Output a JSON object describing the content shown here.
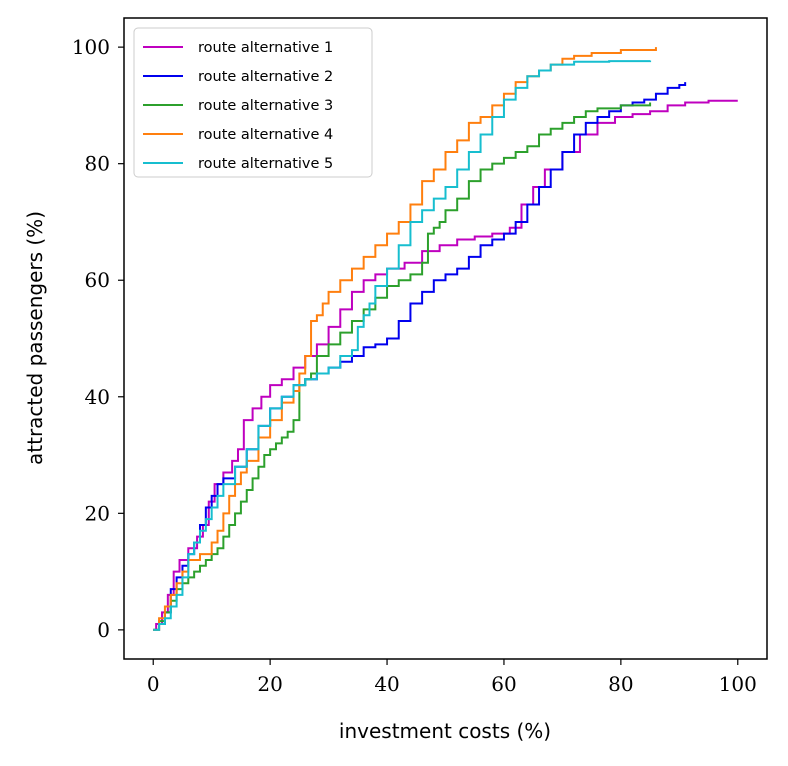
{
  "chart_data": {
    "type": "line",
    "step": true,
    "title": "",
    "xlabel": "investment costs (%)",
    "ylabel": "attracted passengers (%)",
    "xlim": [
      -5,
      105
    ],
    "ylim": [
      -5,
      105
    ],
    "xticks": [
      0,
      20,
      40,
      60,
      80,
      100
    ],
    "yticks": [
      0,
      20,
      40,
      60,
      80,
      100
    ],
    "legend_position": "top-left",
    "series": [
      {
        "name": "route alternative 1",
        "color": "#bf00bf",
        "points": [
          [
            0,
            0
          ],
          [
            0.5,
            1
          ],
          [
            1.5,
            3
          ],
          [
            2.5,
            6
          ],
          [
            3.5,
            10
          ],
          [
            4.5,
            12
          ],
          [
            6,
            14
          ],
          [
            7.5,
            16
          ],
          [
            8.5,
            18
          ],
          [
            9.5,
            22
          ],
          [
            10.5,
            25
          ],
          [
            12,
            27
          ],
          [
            13.5,
            29
          ],
          [
            14.5,
            31
          ],
          [
            15.5,
            36
          ],
          [
            17,
            38
          ],
          [
            18.5,
            40
          ],
          [
            20,
            42
          ],
          [
            22,
            43
          ],
          [
            24,
            45
          ],
          [
            26,
            47
          ],
          [
            28,
            49
          ],
          [
            30,
            52
          ],
          [
            32,
            55
          ],
          [
            34,
            58
          ],
          [
            36,
            60
          ],
          [
            38,
            61
          ],
          [
            40,
            62
          ],
          [
            43,
            63
          ],
          [
            46,
            65
          ],
          [
            49,
            66
          ],
          [
            52,
            67
          ],
          [
            55,
            67.5
          ],
          [
            58,
            68
          ],
          [
            61,
            69
          ],
          [
            63,
            73
          ],
          [
            65,
            76
          ],
          [
            67,
            79
          ],
          [
            70,
            82
          ],
          [
            73,
            85
          ],
          [
            76,
            87
          ],
          [
            79,
            88
          ],
          [
            82,
            88.5
          ],
          [
            85,
            89
          ],
          [
            88,
            90
          ],
          [
            91,
            90.5
          ],
          [
            95,
            90.8
          ],
          [
            100,
            90.8
          ]
        ]
      },
      {
        "name": "route alternative 2",
        "color": "#0000ee",
        "points": [
          [
            0,
            0
          ],
          [
            1,
            1
          ],
          [
            2,
            3
          ],
          [
            3,
            7
          ],
          [
            4,
            9
          ],
          [
            5,
            11
          ],
          [
            6,
            13
          ],
          [
            7,
            15
          ],
          [
            8,
            18
          ],
          [
            9,
            21
          ],
          [
            10,
            23
          ],
          [
            11,
            25
          ],
          [
            12,
            26
          ],
          [
            14,
            28
          ],
          [
            16,
            31
          ],
          [
            18,
            35
          ],
          [
            20,
            38
          ],
          [
            22,
            40
          ],
          [
            24,
            42
          ],
          [
            26,
            43
          ],
          [
            28,
            44
          ],
          [
            30,
            45
          ],
          [
            32,
            46
          ],
          [
            34,
            47
          ],
          [
            36,
            48.5
          ],
          [
            38,
            49
          ],
          [
            40,
            50
          ],
          [
            42,
            53
          ],
          [
            44,
            56
          ],
          [
            46,
            58
          ],
          [
            48,
            60
          ],
          [
            50,
            61
          ],
          [
            52,
            62
          ],
          [
            54,
            64
          ],
          [
            56,
            66
          ],
          [
            58,
            67
          ],
          [
            60,
            68
          ],
          [
            62,
            70
          ],
          [
            64,
            73
          ],
          [
            66,
            76
          ],
          [
            68,
            79
          ],
          [
            70,
            82
          ],
          [
            72,
            85
          ],
          [
            74,
            87
          ],
          [
            76,
            88
          ],
          [
            78,
            89
          ],
          [
            80,
            90
          ],
          [
            82,
            90.5
          ],
          [
            84,
            91
          ],
          [
            86,
            92
          ],
          [
            88,
            93
          ],
          [
            90,
            93.5
          ],
          [
            91,
            94
          ]
        ]
      },
      {
        "name": "route alternative 3",
        "color": "#2ca02c",
        "points": [
          [
            0,
            0
          ],
          [
            1,
            1.5
          ],
          [
            2,
            3
          ],
          [
            3,
            5
          ],
          [
            4,
            7
          ],
          [
            5,
            8
          ],
          [
            6,
            9
          ],
          [
            7,
            10
          ],
          [
            8,
            11
          ],
          [
            9,
            12
          ],
          [
            10,
            13
          ],
          [
            11,
            14
          ],
          [
            12,
            16
          ],
          [
            13,
            18
          ],
          [
            14,
            20
          ],
          [
            15,
            22
          ],
          [
            16,
            24
          ],
          [
            17,
            26
          ],
          [
            18,
            28
          ],
          [
            19,
            30
          ],
          [
            20,
            31
          ],
          [
            21,
            32
          ],
          [
            22,
            33
          ],
          [
            23,
            34
          ],
          [
            24,
            36
          ],
          [
            25,
            42
          ],
          [
            26,
            43
          ],
          [
            27,
            44
          ],
          [
            28,
            47
          ],
          [
            30,
            49
          ],
          [
            32,
            51
          ],
          [
            34,
            53
          ],
          [
            36,
            55
          ],
          [
            38,
            57
          ],
          [
            40,
            59
          ],
          [
            42,
            60
          ],
          [
            44,
            61
          ],
          [
            46,
            63
          ],
          [
            47,
            68
          ],
          [
            48,
            69
          ],
          [
            49,
            70
          ],
          [
            50,
            72
          ],
          [
            52,
            74
          ],
          [
            54,
            77
          ],
          [
            56,
            79
          ],
          [
            58,
            80
          ],
          [
            60,
            81
          ],
          [
            62,
            82
          ],
          [
            64,
            83
          ],
          [
            66,
            85
          ],
          [
            68,
            86
          ],
          [
            70,
            87
          ],
          [
            72,
            88
          ],
          [
            74,
            89
          ],
          [
            76,
            89.5
          ],
          [
            80,
            90
          ],
          [
            85,
            90.5
          ]
        ]
      },
      {
        "name": "route alternative 4",
        "color": "#ff7f0e",
        "points": [
          [
            0,
            0
          ],
          [
            1,
            2
          ],
          [
            2,
            4
          ],
          [
            3,
            6
          ],
          [
            4,
            8
          ],
          [
            5,
            10
          ],
          [
            6,
            12
          ],
          [
            8,
            13
          ],
          [
            10,
            15
          ],
          [
            11,
            17
          ],
          [
            12,
            20
          ],
          [
            13,
            23
          ],
          [
            14,
            25
          ],
          [
            15,
            27
          ],
          [
            16,
            29
          ],
          [
            18,
            33
          ],
          [
            20,
            36
          ],
          [
            22,
            39
          ],
          [
            24,
            41
          ],
          [
            25,
            44
          ],
          [
            26,
            47
          ],
          [
            27,
            53
          ],
          [
            28,
            54
          ],
          [
            29,
            56
          ],
          [
            30,
            58
          ],
          [
            32,
            60
          ],
          [
            34,
            62
          ],
          [
            36,
            64
          ],
          [
            38,
            66
          ],
          [
            40,
            68
          ],
          [
            42,
            70
          ],
          [
            44,
            73
          ],
          [
            46,
            77
          ],
          [
            48,
            79
          ],
          [
            50,
            82
          ],
          [
            52,
            84
          ],
          [
            54,
            87
          ],
          [
            56,
            88
          ],
          [
            58,
            90
          ],
          [
            60,
            92
          ],
          [
            62,
            94
          ],
          [
            64,
            95
          ],
          [
            66,
            96
          ],
          [
            68,
            97
          ],
          [
            70,
            98
          ],
          [
            72,
            98.5
          ],
          [
            75,
            99
          ],
          [
            80,
            99.5
          ],
          [
            86,
            100
          ]
        ]
      },
      {
        "name": "route alternative 5",
        "color": "#17becf",
        "points": [
          [
            0,
            0
          ],
          [
            1,
            1
          ],
          [
            2,
            2
          ],
          [
            3,
            4
          ],
          [
            4,
            6
          ],
          [
            5,
            9
          ],
          [
            6,
            13
          ],
          [
            7,
            15
          ],
          [
            8,
            17
          ],
          [
            9,
            19
          ],
          [
            10,
            21
          ],
          [
            11,
            23
          ],
          [
            12,
            25
          ],
          [
            14,
            28
          ],
          [
            16,
            31
          ],
          [
            18,
            35
          ],
          [
            20,
            38
          ],
          [
            22,
            40
          ],
          [
            24,
            42
          ],
          [
            26,
            43
          ],
          [
            28,
            44
          ],
          [
            30,
            45
          ],
          [
            32,
            47
          ],
          [
            34,
            48
          ],
          [
            35,
            52
          ],
          [
            36,
            54
          ],
          [
            37,
            56
          ],
          [
            38,
            59
          ],
          [
            40,
            62
          ],
          [
            42,
            66
          ],
          [
            44,
            70
          ],
          [
            46,
            72
          ],
          [
            48,
            74
          ],
          [
            50,
            76
          ],
          [
            52,
            79
          ],
          [
            54,
            82
          ],
          [
            56,
            85
          ],
          [
            58,
            88
          ],
          [
            60,
            91
          ],
          [
            62,
            93
          ],
          [
            64,
            95
          ],
          [
            66,
            96
          ],
          [
            68,
            97
          ],
          [
            72,
            97.5
          ],
          [
            78,
            97.6
          ],
          [
            85,
            97.7
          ]
        ]
      }
    ]
  }
}
